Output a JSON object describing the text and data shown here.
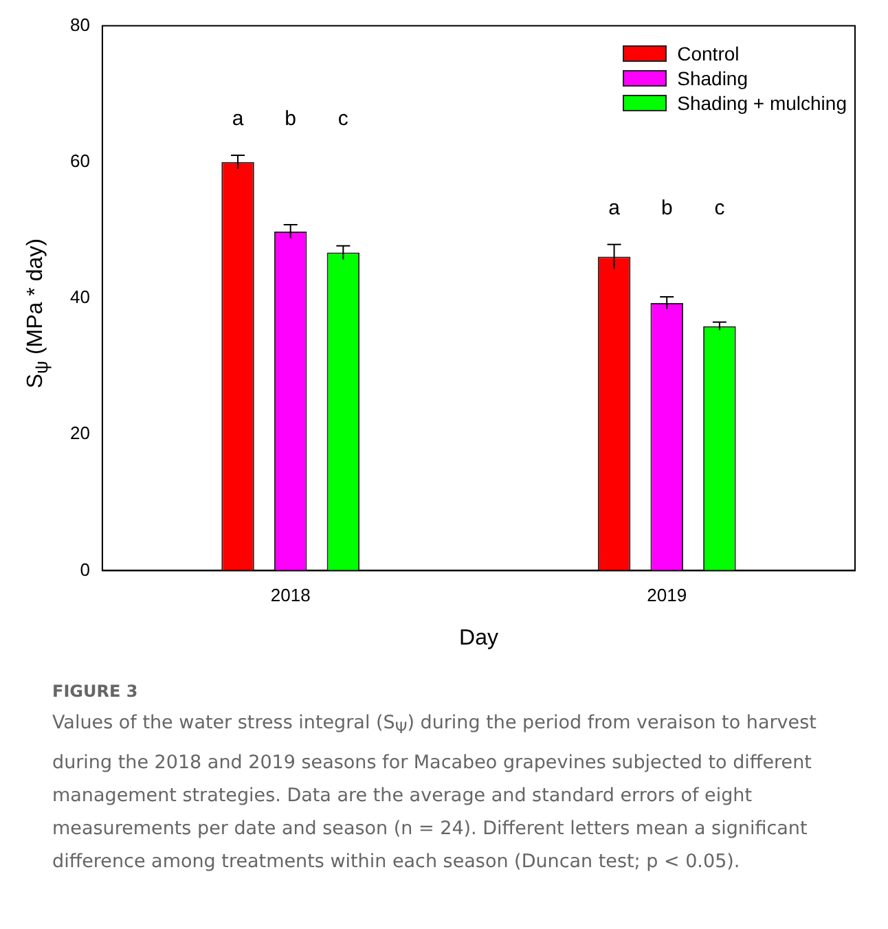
{
  "chart_data": {
    "type": "bar",
    "xlabel": "Day",
    "ylabel": "S$_{ψ}$ (MPa * day)",
    "categories": [
      "2018",
      "2019"
    ],
    "series": [
      {
        "name": "Control",
        "color": "#ff0000",
        "values": [
          60.0,
          46.1
        ],
        "errors": [
          1.0,
          1.8
        ]
      },
      {
        "name": "Shading",
        "color": "#ff00ff",
        "values": [
          49.8,
          39.3
        ],
        "errors": [
          1.0,
          0.9
        ]
      },
      {
        "name": "Shading + mulching",
        "color": "#00ff00",
        "values": [
          46.7,
          35.9
        ],
        "errors": [
          1.0,
          0.6
        ]
      }
    ],
    "ylim": [
      0,
      80
    ],
    "yticks": [
      0,
      20,
      40,
      60,
      80
    ],
    "legend": "top right",
    "annotations": [
      "a",
      "b",
      "c",
      "a",
      "b",
      "c",
      "FIGURE 3",
      "Values of the water stress integral (S$_{Ψ}$) during the period from veraison to harvest during the 2018 and 2019 seasons for Macabeo grapevines subjected to different management strategies. Data are the average and standard errors of eight measurements per date and season (n = 24). Different letters mean a significant difference among treatments within each season (Duncan test; p < 0.05)."
    ]
  }
}
